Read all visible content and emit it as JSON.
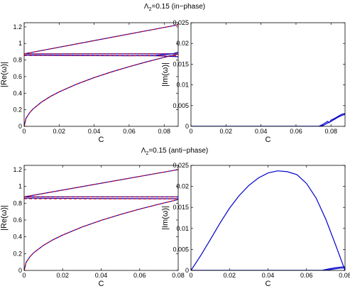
{
  "figure": {
    "top_title": "Λ",
    "top_title_sub": "2",
    "top_title_rest": "=0.15 (in−phase)",
    "bottom_title": "Λ",
    "bottom_title_sub": "2",
    "bottom_title_rest": "=0.15 (anti−phase)"
  },
  "chart_data": [
    {
      "type": "line",
      "panel": "top-left",
      "xlabel": "C",
      "ylabel": "|Re(ω)|",
      "xlim": [
        0,
        0.088
      ],
      "ylim": [
        0,
        1.25
      ],
      "xticks": [
        "0",
        "0.02",
        "0.04",
        "0.06",
        "0.08"
      ],
      "yticks": [
        "0",
        "0.2",
        "0.4",
        "0.6",
        "0.8",
        "1",
        "1.2"
      ],
      "series": [
        {
          "color": "#0000cc",
          "style": "solid",
          "x": [
            0,
            0.088
          ],
          "y": [
            0.875,
            1.225
          ]
        },
        {
          "color": "#dd0000",
          "style": "dashed",
          "x": [
            0,
            0.088
          ],
          "y": [
            0.875,
            1.225
          ]
        },
        {
          "color": "#0000cc",
          "style": "solid",
          "x": [
            0,
            0.088
          ],
          "y": [
            0.875,
            0.875
          ]
        },
        {
          "color": "#dd0000",
          "style": "dashed",
          "x": [
            0,
            0.088
          ],
          "y": [
            0.875,
            0.875
          ]
        },
        {
          "color": "#0000cc",
          "style": "solid",
          "x": [
            0,
            0.02,
            0.04,
            0.06,
            0.075,
            0.085,
            0.088
          ],
          "y": [
            0.86,
            0.855,
            0.853,
            0.852,
            0.855,
            0.875,
            0.895
          ]
        },
        {
          "color": "#0000cc",
          "style": "solid",
          "x": [
            0,
            0.06,
            0.075,
            0.088
          ],
          "y": [
            0.86,
            0.853,
            0.852,
            0.84
          ]
        },
        {
          "color": "#dd0000",
          "style": "dashed",
          "x": [
            0,
            0.088
          ],
          "y": [
            0.855,
            0.85
          ]
        },
        {
          "color": "#0000cc",
          "style": "solid",
          "x": [
            0,
            0.001,
            0.003,
            0.005,
            0.01,
            0.015,
            0.02,
            0.03,
            0.04,
            0.05,
            0.06,
            0.07,
            0.08,
            0.088
          ],
          "y": [
            0,
            0.093,
            0.161,
            0.208,
            0.294,
            0.36,
            0.416,
            0.509,
            0.588,
            0.657,
            0.72,
            0.778,
            0.832,
            0.872
          ]
        },
        {
          "color": "#dd0000",
          "style": "dashed",
          "x": [
            0,
            0.001,
            0.003,
            0.005,
            0.01,
            0.015,
            0.02,
            0.03,
            0.04,
            0.05,
            0.06,
            0.07,
            0.08,
            0.088
          ],
          "y": [
            0,
            0.093,
            0.161,
            0.208,
            0.294,
            0.36,
            0.416,
            0.509,
            0.588,
            0.657,
            0.72,
            0.778,
            0.832,
            0.872
          ]
        }
      ]
    },
    {
      "type": "line",
      "panel": "top-right",
      "xlabel": "C",
      "ylabel": "|Im(ω)|",
      "xlim": [
        0,
        0.088
      ],
      "ylim": [
        0,
        0.025
      ],
      "xticks": [
        "0",
        "0.02",
        "0.04",
        "0.06",
        "0.08"
      ],
      "yticks": [
        "0",
        "0.005",
        "0.01",
        "0.015",
        "0.02",
        "0.025"
      ],
      "series": [
        {
          "color": "#0000cc",
          "style": "solid",
          "x": [
            0,
            0.073,
            0.075,
            0.077,
            0.078,
            0.079,
            0.08,
            0.082,
            0.084,
            0.086,
            0.088
          ],
          "y": [
            0,
            0,
            0.0004,
            0.0009,
            0.0012,
            0.0009,
            0.0015,
            0.0019,
            0.0024,
            0.0029,
            0.0031
          ]
        },
        {
          "color": "#0000cc",
          "style": "solid",
          "x": [
            0,
            0.074,
            0.076,
            0.078,
            0.08,
            0.082,
            0.084,
            0.086,
            0.088
          ],
          "y": [
            0,
            0,
            0.0003,
            0.0008,
            0.0012,
            0.0017,
            0.0022,
            0.0026,
            0.0029
          ]
        }
      ]
    },
    {
      "type": "line",
      "panel": "bottom-left",
      "xlabel": "C",
      "ylabel": "|Re(ω)|",
      "xlim": [
        0,
        0.08
      ],
      "ylim": [
        0,
        1.25
      ],
      "xticks": [
        "0",
        "0.02",
        "0.04",
        "0.06",
        "0.08"
      ],
      "yticks": [
        "0",
        "0.2",
        "0.4",
        "0.6",
        "0.8",
        "1",
        "1.2"
      ],
      "series": [
        {
          "color": "#0000cc",
          "style": "solid",
          "x": [
            0,
            0.08
          ],
          "y": [
            0.875,
            1.2
          ]
        },
        {
          "color": "#dd0000",
          "style": "dashed",
          "x": [
            0,
            0.08
          ],
          "y": [
            0.875,
            1.2
          ]
        },
        {
          "color": "#0000cc",
          "style": "solid",
          "x": [
            0,
            0.08
          ],
          "y": [
            0.875,
            0.875
          ]
        },
        {
          "color": "#dd0000",
          "style": "dashed",
          "x": [
            0,
            0.08
          ],
          "y": [
            0.875,
            0.875
          ]
        },
        {
          "color": "#0000cc",
          "style": "solid",
          "x": [
            0,
            0.04,
            0.08
          ],
          "y": [
            0.86,
            0.855,
            0.853
          ]
        },
        {
          "color": "#dd0000",
          "style": "dashed",
          "x": [
            0,
            0.08
          ],
          "y": [
            0.853,
            0.85
          ]
        },
        {
          "color": "#0000cc",
          "style": "solid",
          "x": [
            0,
            0.001,
            0.003,
            0.005,
            0.01,
            0.015,
            0.02,
            0.03,
            0.04,
            0.05,
            0.06,
            0.07,
            0.08
          ],
          "y": [
            0,
            0.094,
            0.163,
            0.211,
            0.298,
            0.365,
            0.421,
            0.516,
            0.596,
            0.666,
            0.73,
            0.788,
            0.843
          ]
        },
        {
          "color": "#dd0000",
          "style": "dashed",
          "x": [
            0,
            0.001,
            0.003,
            0.005,
            0.01,
            0.015,
            0.02,
            0.03,
            0.04,
            0.05,
            0.06,
            0.07,
            0.08
          ],
          "y": [
            0,
            0.094,
            0.163,
            0.211,
            0.298,
            0.365,
            0.421,
            0.516,
            0.596,
            0.666,
            0.73,
            0.788,
            0.843
          ]
        }
      ]
    },
    {
      "type": "line",
      "panel": "bottom-right",
      "xlabel": "C",
      "ylabel": "|Im(ω)|",
      "xlim": [
        0,
        0.08
      ],
      "ylim": [
        0,
        0.025
      ],
      "xticks": [
        "0",
        "0.02",
        "0.04",
        "0.06",
        "0.08"
      ],
      "yticks": [
        "0",
        "0.005",
        "0.01",
        "0.015",
        "0.02",
        "0.025"
      ],
      "series": [
        {
          "color": "#0000cc",
          "style": "solid",
          "x": [
            0,
            0.005,
            0.01,
            0.015,
            0.02,
            0.025,
            0.03,
            0.035,
            0.04,
            0.045,
            0.05,
            0.055,
            0.06,
            0.065,
            0.07,
            0.075,
            0.08
          ],
          "y": [
            0,
            0.0035,
            0.0073,
            0.0112,
            0.0148,
            0.0178,
            0.0202,
            0.022,
            0.0232,
            0.0237,
            0.0235,
            0.0228,
            0.0207,
            0.0172,
            0.0122,
            0.0062,
            0
          ]
        },
        {
          "color": "#0000cc",
          "style": "solid",
          "x": [
            0,
            0.068,
            0.072,
            0.076,
            0.08
          ],
          "y": [
            0,
            0,
            0.0004,
            0.0007,
            0.0009
          ]
        },
        {
          "color": "#0000cc",
          "style": "solid",
          "x": [
            0,
            0.07,
            0.074,
            0.077,
            0.08
          ],
          "y": [
            0,
            0,
            0.0003,
            0.0005,
            0.0006
          ]
        }
      ]
    }
  ]
}
